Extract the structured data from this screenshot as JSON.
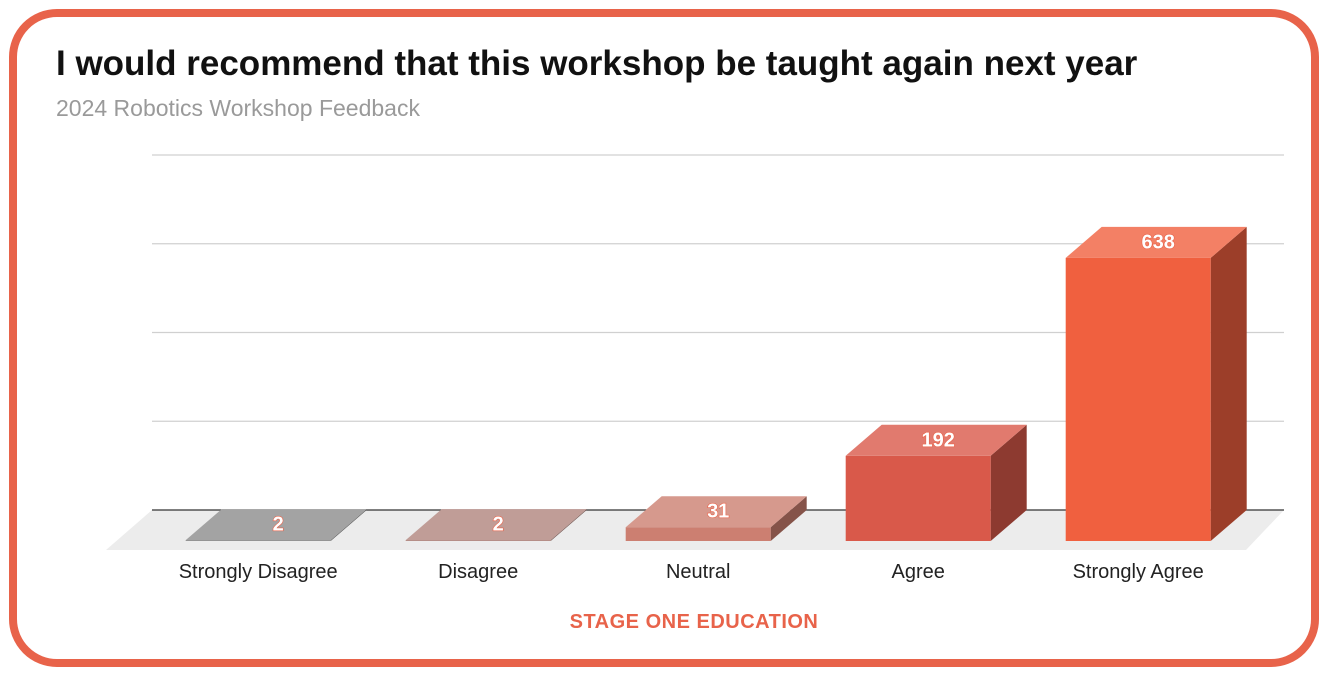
{
  "chart_data": {
    "type": "bar",
    "title": "I would recommend that this workshop be taught again next year",
    "subtitle": "2024 Robotics Workshop Feedback",
    "categories": [
      "Strongly Disagree",
      "Disagree",
      "Neutral",
      "Agree",
      "Strongly Agree"
    ],
    "values": [
      2,
      2,
      31,
      192,
      638
    ],
    "colors": [
      "#8c8c8c",
      "#b0857d",
      "#cc7f71",
      "#d9594a",
      "#f0603f"
    ],
    "ylim": [
      0,
      800
    ],
    "grid": true,
    "legend": "none",
    "style": "3d"
  },
  "footer": {
    "source": "STAGE ONE EDUCATION"
  },
  "theme": {
    "accent": "#e8634a"
  }
}
